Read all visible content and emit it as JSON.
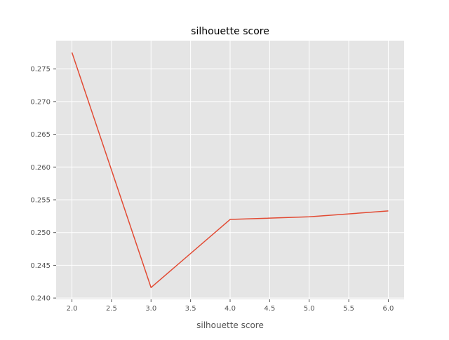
{
  "chart_data": {
    "type": "line",
    "title": "silhouette score",
    "xlabel": "silhouette score",
    "ylabel": "",
    "xlim": [
      1.8,
      6.2
    ],
    "ylim": [
      0.2398,
      0.2793
    ],
    "xticks": [
      2.0,
      2.5,
      3.0,
      3.5,
      4.0,
      4.5,
      5.0,
      5.5,
      6.0
    ],
    "xtick_labels": [
      "2.0",
      "2.5",
      "3.0",
      "3.5",
      "4.0",
      "4.5",
      "5.0",
      "5.5",
      "6.0"
    ],
    "yticks": [
      0.24,
      0.245,
      0.25,
      0.255,
      0.26,
      0.265,
      0.27,
      0.275
    ],
    "ytick_labels": [
      "0.240",
      "0.245",
      "0.250",
      "0.255",
      "0.260",
      "0.265",
      "0.270",
      "0.275"
    ],
    "grid": true,
    "x": [
      2,
      3,
      4,
      5,
      6
    ],
    "series": [
      {
        "values": [
          0.2775,
          0.2416,
          0.252,
          0.2524,
          0.2533
        ]
      }
    ],
    "colors": {
      "line": "#e24a33",
      "plot_background": "#e5e5e5",
      "grid": "#ffffff",
      "text": "#555555"
    }
  }
}
